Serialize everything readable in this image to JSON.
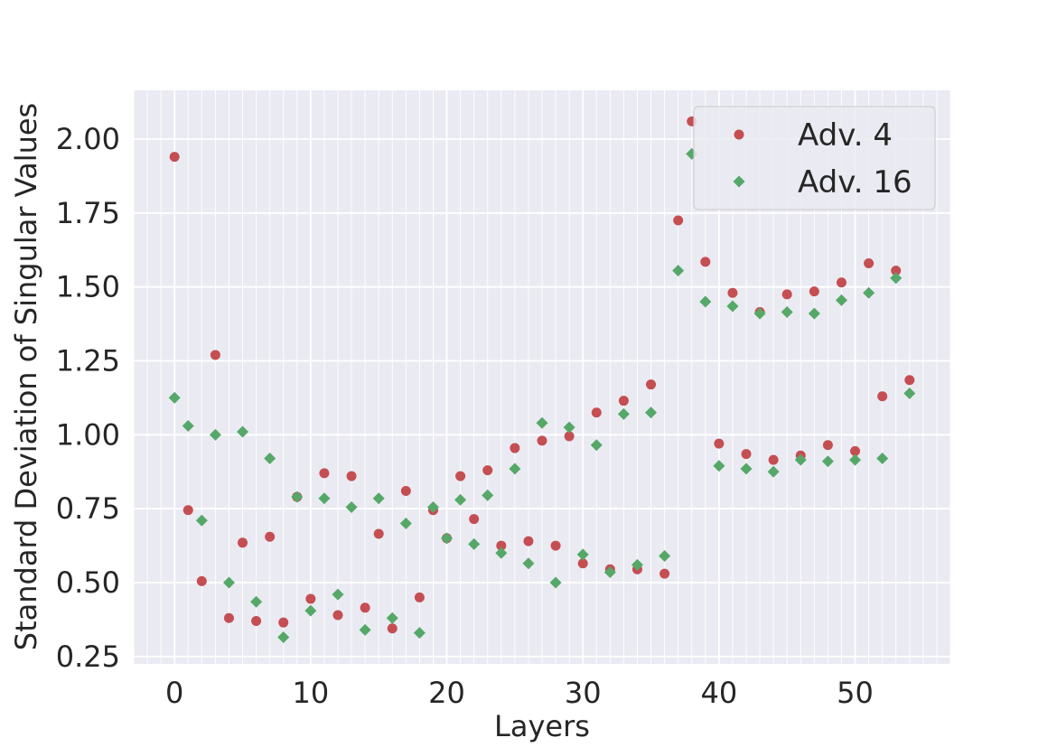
{
  "chart_data": {
    "type": "scatter",
    "title": "",
    "xlabel": "Layers",
    "ylabel": "Standard Deviation of Singular Values",
    "xlim": [
      -3,
      57
    ],
    "ylim": [
      0.225,
      2.165
    ],
    "xticks": [
      0,
      10,
      20,
      30,
      40,
      50
    ],
    "yticks": [
      0.25,
      0.5,
      0.75,
      1.0,
      1.25,
      1.5,
      1.75,
      2.0
    ],
    "xtick_labels": [
      "0",
      "10",
      "20",
      "30",
      "40",
      "50"
    ],
    "ytick_labels": [
      "0.25",
      "0.50",
      "0.75",
      "1.00",
      "1.25",
      "1.50",
      "1.75",
      "2.00"
    ],
    "grid": true,
    "legend_position": "top-right",
    "colors": {
      "background": "#eaeaf2",
      "grid": "#ffffff",
      "adv4": "#c44e52",
      "adv16": "#55a868"
    },
    "series": [
      {
        "name": "Adv. 4",
        "marker": "circle",
        "x": [
          0,
          1,
          2,
          3,
          4,
          5,
          6,
          7,
          8,
          9,
          10,
          11,
          12,
          13,
          14,
          15,
          16,
          17,
          18,
          19,
          20,
          21,
          22,
          23,
          24,
          25,
          26,
          27,
          28,
          29,
          30,
          31,
          32,
          33,
          34,
          35,
          36,
          37,
          38,
          39,
          40,
          41,
          42,
          43,
          44,
          45,
          46,
          47,
          48,
          49,
          50,
          51,
          52,
          53,
          54
        ],
        "y": [
          1.94,
          0.745,
          0.505,
          1.27,
          0.38,
          0.635,
          0.37,
          0.655,
          0.365,
          0.79,
          0.445,
          0.87,
          0.39,
          0.86,
          0.415,
          0.665,
          0.345,
          0.81,
          0.45,
          0.745,
          0.65,
          0.86,
          0.715,
          0.88,
          0.625,
          0.955,
          0.64,
          0.98,
          0.625,
          0.995,
          0.565,
          1.075,
          0.545,
          1.115,
          0.545,
          1.17,
          0.53,
          1.725,
          2.06,
          1.585,
          0.97,
          1.48,
          0.935,
          1.415,
          0.915,
          1.475,
          0.93,
          1.485,
          0.965,
          1.515,
          0.945,
          1.58,
          1.13,
          1.555,
          1.185
        ]
      },
      {
        "name": "Adv. 16",
        "marker": "diamond",
        "x": [
          0,
          1,
          2,
          3,
          4,
          5,
          6,
          7,
          8,
          9,
          10,
          11,
          12,
          13,
          14,
          15,
          16,
          17,
          18,
          19,
          20,
          21,
          22,
          23,
          24,
          25,
          26,
          27,
          28,
          29,
          30,
          31,
          32,
          33,
          34,
          35,
          36,
          37,
          38,
          39,
          40,
          41,
          42,
          43,
          44,
          45,
          46,
          47,
          48,
          49,
          50,
          51,
          52,
          53,
          54
        ],
        "y": [
          1.125,
          1.03,
          0.71,
          1.0,
          0.5,
          1.01,
          0.435,
          0.92,
          0.315,
          0.79,
          0.405,
          0.785,
          0.46,
          0.755,
          0.34,
          0.785,
          0.38,
          0.7,
          0.33,
          0.755,
          0.65,
          0.78,
          0.63,
          0.795,
          0.6,
          0.885,
          0.565,
          1.04,
          0.5,
          1.025,
          0.595,
          0.965,
          0.535,
          1.07,
          0.56,
          1.075,
          0.59,
          1.555,
          1.95,
          1.45,
          0.895,
          1.435,
          0.885,
          1.41,
          0.875,
          1.415,
          0.915,
          1.41,
          0.91,
          1.455,
          0.915,
          1.48,
          0.92,
          1.53,
          1.14
        ]
      }
    ]
  }
}
